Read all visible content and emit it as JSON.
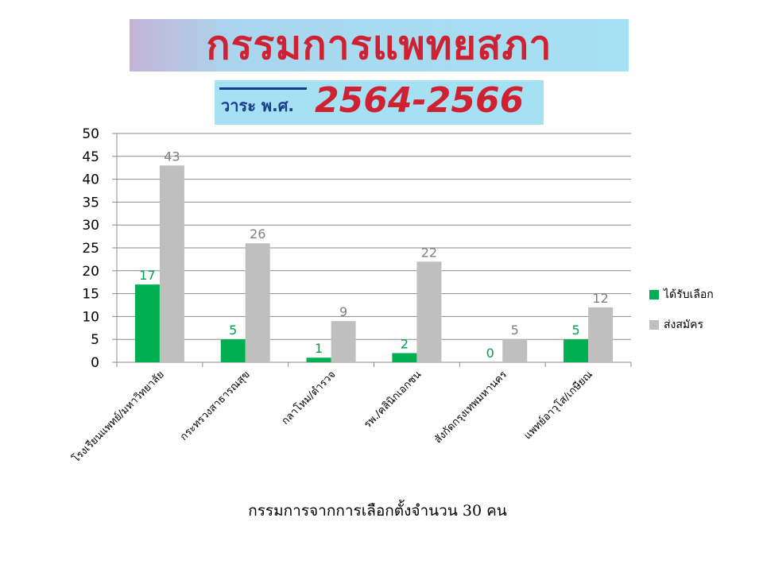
{
  "header": {
    "title": "กรรมการแพทยสภา",
    "term_prefix": "วาระ พ.ศ.",
    "term_years": "2564-2566"
  },
  "chart_data": {
    "type": "bar",
    "categories": [
      "โรงเรียนแพทย์/มหาวิทยาลัย",
      "กระทรวงสาธารณสุข",
      "กลาโหม/ตำรวจ",
      "รพ./คลินิกเอกชน",
      "สังกัดกรุงเทพมหานคร",
      "แพทย์อาวุโส/เกษียณ"
    ],
    "series": [
      {
        "name": "ได้รับเลือก",
        "values": [
          17,
          5,
          1,
          2,
          0,
          5
        ],
        "color": "#00b050"
      },
      {
        "name": "ส่งสมัคร",
        "values": [
          43,
          26,
          9,
          22,
          5,
          12
        ],
        "color": "#bfbfbf"
      }
    ],
    "ylim": [
      0,
      50
    ],
    "yticks": [
      0,
      5,
      10,
      15,
      20,
      25,
      30,
      35,
      40,
      45,
      50
    ],
    "grid": true,
    "legend_position": "right",
    "xlabel": "กรรมการจากการเลือกตั้งจำนวน 30 คน",
    "ylabel": ""
  }
}
